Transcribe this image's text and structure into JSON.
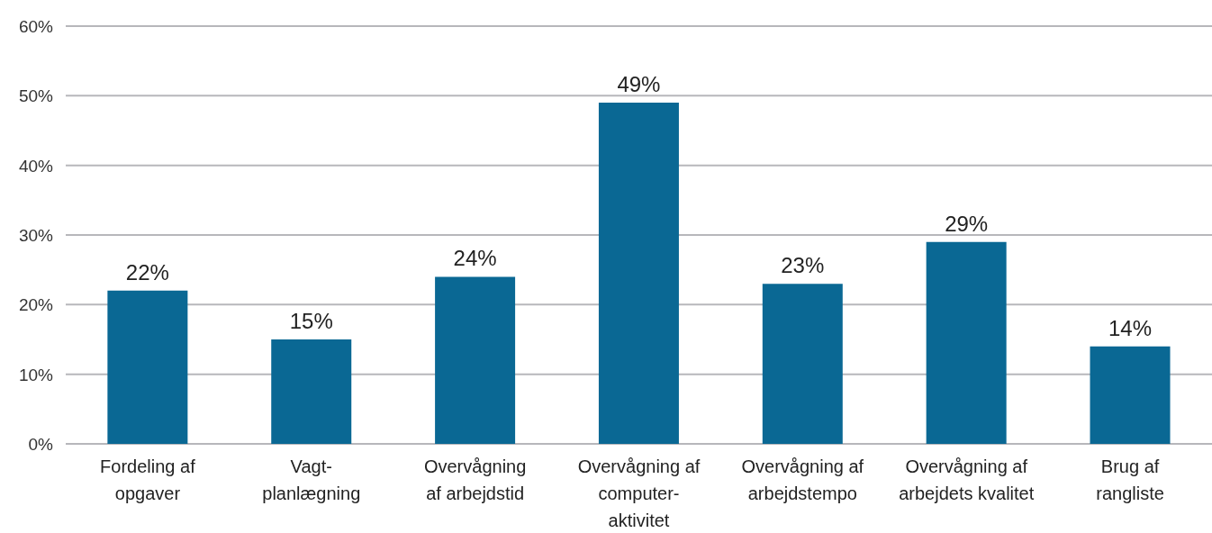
{
  "chart_data": {
    "type": "bar",
    "categories": [
      "Fordeling af\nopgaver",
      "Vagt-\nplanlægning",
      "Overvågning\naf arbejdstid",
      "Overvågning af\ncomputer-\naktivitet",
      "Overvågning af\narbejdstempo",
      "Overvågning af\narbejdets kvalitet",
      "Brug af\nrangliste"
    ],
    "values": [
      22,
      15,
      24,
      49,
      23,
      29,
      14
    ],
    "value_labels": [
      "22%",
      "15%",
      "24%",
      "49%",
      "23%",
      "29%",
      "14%"
    ],
    "color": "#0a6894",
    "ylim": [
      0,
      60
    ],
    "yticks": [
      {
        "value": 0,
        "label": "0%"
      },
      {
        "value": 10,
        "label": "10%"
      },
      {
        "value": 20,
        "label": "20%"
      },
      {
        "value": 30,
        "label": "30%"
      },
      {
        "value": 40,
        "label": "40%"
      },
      {
        "value": 50,
        "label": "50%"
      },
      {
        "value": 60,
        "label": "60%"
      }
    ],
    "grid": "y"
  }
}
